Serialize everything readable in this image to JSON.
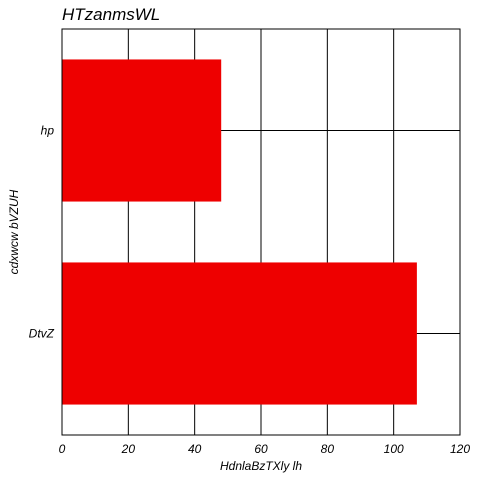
{
  "chart_data": {
    "type": "bar",
    "orientation": "horizontal",
    "title": "HTzanmsWL",
    "xlabel": "HdnlaBzTXly lh",
    "ylabel": "cdxwcw bVZUH",
    "categories": [
      "hp",
      "DtvZ"
    ],
    "values": [
      48,
      107
    ],
    "xlim": [
      0,
      120
    ],
    "xticks": [
      0,
      20,
      40,
      60,
      80,
      100,
      120
    ],
    "grid": true,
    "bar_color": "#ee0000"
  }
}
